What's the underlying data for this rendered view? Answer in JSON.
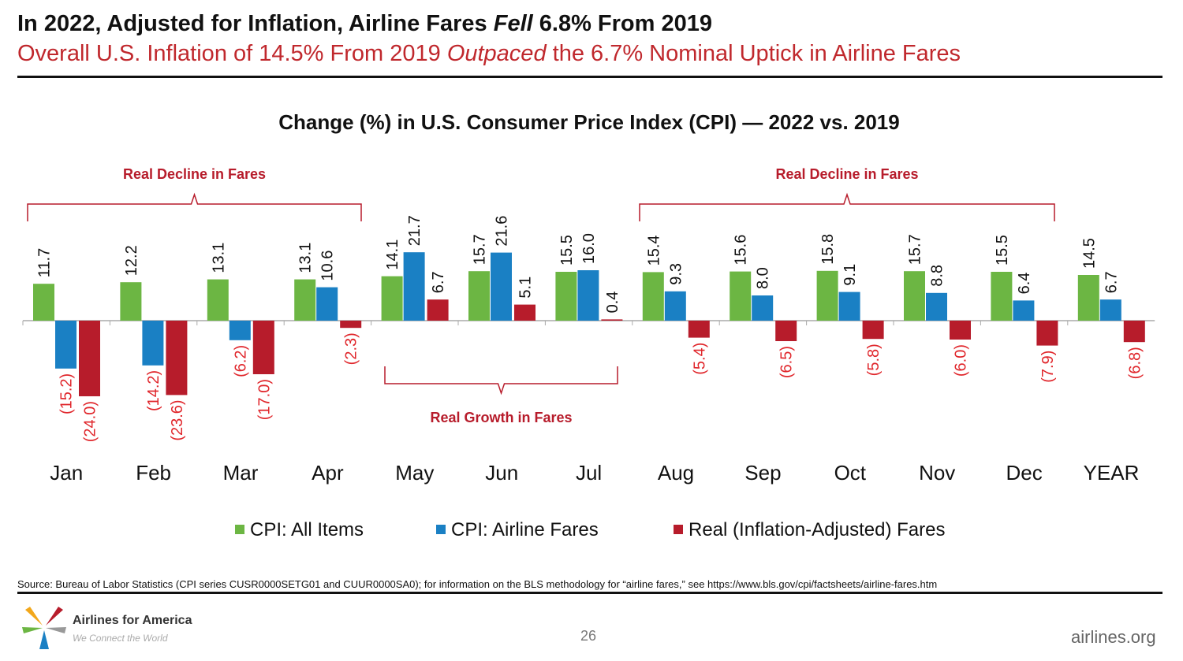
{
  "header": {
    "title_parts": [
      "In 2022, Adjusted for Inflation, Airline Fares ",
      "Fell",
      " 6.8% From 2019"
    ],
    "subtitle_parts": [
      "Overall U.S. Inflation of 14.5% From 2019 ",
      "Outpaced",
      " the 6.7% Nominal Uptick in Airline Fares"
    ]
  },
  "chart_data": {
    "type": "bar",
    "title": "Change (%) in U.S. Consumer Price Index (CPI) — 2022 vs. 2019",
    "categories": [
      "Jan",
      "Feb",
      "Mar",
      "Apr",
      "May",
      "Jun",
      "Jul",
      "Aug",
      "Sep",
      "Oct",
      "Nov",
      "Dec",
      "YEAR"
    ],
    "series": [
      {
        "name": "CPI: All Items",
        "color": "#6cb643",
        "values": [
          11.7,
          12.2,
          13.1,
          13.1,
          14.1,
          15.7,
          15.5,
          15.4,
          15.6,
          15.8,
          15.7,
          15.5,
          14.5
        ]
      },
      {
        "name": "CPI: Airline Fares",
        "color": "#1a80c4",
        "values": [
          -15.2,
          -14.2,
          -6.2,
          10.6,
          21.7,
          21.6,
          16.0,
          9.3,
          8.0,
          9.1,
          8.8,
          6.4,
          6.7
        ]
      },
      {
        "name": "Real (Inflation-Adjusted) Fares",
        "color": "#b71c2b",
        "values": [
          -24.0,
          -23.6,
          -17.0,
          -2.3,
          6.7,
          5.1,
          0.4,
          -5.4,
          -6.5,
          -5.8,
          -6.0,
          -7.9,
          -6.8
        ]
      }
    ],
    "negative_label_color": "#e0262b",
    "legend": "bottom",
    "annotations": [
      {
        "text": "Real Decline in Fares",
        "from": "Jan",
        "to": "Apr",
        "position": "top"
      },
      {
        "text": "Real Growth in Fares",
        "from": "May",
        "to": "Jul",
        "position": "bottom"
      },
      {
        "text": "Real Decline in Fares",
        "from": "Aug",
        "to": "Dec",
        "position": "top"
      }
    ]
  },
  "footer": {
    "source": "Source: Bureau of Labor Statistics (CPI series CUSR0000SETG01 and CUUR0000SA0); for information on the BLS methodology for “airline fares,” see https://www.bls.gov/cpi/factsheets/airline-fares.htm",
    "brand": "Airlines for America",
    "tagline": "We Connect the World",
    "page": "26",
    "site": "airlines.org"
  }
}
